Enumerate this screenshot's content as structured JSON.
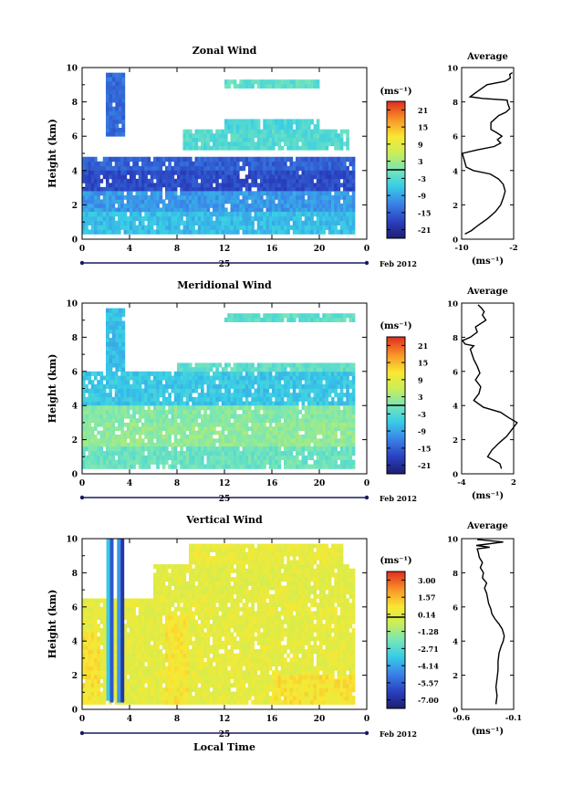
{
  "chart_data": [
    {
      "type": "heatmap",
      "title": "Zonal Wind",
      "ylabel": "Height (km)",
      "ylim": [
        0,
        10
      ],
      "y_ticks": [
        "0",
        "2",
        "4",
        "6",
        "8",
        "10"
      ],
      "xlim": [
        0,
        24
      ],
      "x_ticks": [
        "0",
        "4",
        "8",
        "12",
        "16",
        "20",
        "0"
      ],
      "date_label": "25",
      "month_label": "Feb 2012",
      "colorbar": {
        "unit": "(ms⁻¹)",
        "ticks": [
          "21",
          "15",
          "9",
          "3",
          "-3",
          "-9",
          "-15",
          "-21"
        ],
        "range": [
          -24,
          24
        ]
      },
      "regions": [
        {
          "x": [
            2.0,
            3.6
          ],
          "y": [
            6.0,
            9.7
          ],
          "value": -14
        },
        {
          "x": [
            0.0,
            23.0
          ],
          "y": [
            4.0,
            4.8
          ],
          "value": -15
        },
        {
          "x": [
            0.0,
            23.0
          ],
          "y": [
            2.8,
            4.0
          ],
          "value": -17
        },
        {
          "x": [
            0.0,
            23.0
          ],
          "y": [
            1.6,
            2.8
          ],
          "value": -10
        },
        {
          "x": [
            0.0,
            23.0
          ],
          "y": [
            0.3,
            1.6
          ],
          "value": -7
        },
        {
          "x": [
            8.5,
            22.5
          ],
          "y": [
            5.2,
            6.4
          ],
          "value": -3
        },
        {
          "x": [
            12.0,
            20.0
          ],
          "y": [
            6.4,
            7.0
          ],
          "value": -4
        },
        {
          "x": [
            12.0,
            20.0
          ],
          "y": [
            8.8,
            9.3
          ],
          "value": -2
        }
      ],
      "inset": {
        "title": "Average",
        "xlabel": "(ms⁻¹)",
        "x_ticks": [
          "-10",
          "-2"
        ],
        "xlim": [
          -10,
          -2
        ],
        "y_ticks": [
          "0",
          "2",
          "4",
          "6",
          "8",
          "10"
        ],
        "profile": {
          "x": [
            -9.5,
            -8.5,
            -7.5,
            -6,
            -4.8,
            -4,
            -3.6,
            -3.3,
            -3.6,
            -4.3,
            -5.6,
            -8.2,
            -9.3,
            -9.6,
            -9.9,
            -7.6,
            -5,
            -4,
            -4.5,
            -3.8,
            -4.6,
            -5.5,
            -5.5,
            -4.3,
            -3.2,
            -2.6,
            -2.9,
            -3,
            -6.8,
            -8.7,
            -7.6,
            -6.1,
            -3.3,
            -2.5,
            -2.6,
            -2.2
          ],
          "y": [
            0.3,
            0.5,
            0.8,
            1.2,
            1.6,
            2.0,
            2.4,
            2.8,
            3.2,
            3.5,
            3.8,
            4.0,
            4.2,
            4.6,
            5.0,
            5.2,
            5.4,
            5.6,
            5.8,
            6.0,
            6.2,
            6.4,
            6.8,
            7.2,
            7.4,
            7.6,
            7.9,
            8.1,
            8.2,
            8.3,
            8.6,
            9.0,
            9.2,
            9.4,
            9.6,
            9.7
          ]
        }
      }
    },
    {
      "type": "heatmap",
      "title": "Meridional Wind",
      "ylabel": "Height (km)",
      "ylim": [
        0,
        10
      ],
      "y_ticks": [
        "0",
        "2",
        "4",
        "6",
        "8",
        "10"
      ],
      "xlim": [
        0,
        24
      ],
      "x_ticks": [
        "0",
        "4",
        "8",
        "12",
        "16",
        "20",
        "0"
      ],
      "date_label": "25",
      "month_label": "Feb 2012",
      "colorbar": {
        "unit": "(ms⁻¹)",
        "ticks": [
          "21",
          "15",
          "9",
          "3",
          "-3",
          "-9",
          "-15",
          "-21"
        ],
        "range": [
          -24,
          24
        ]
      },
      "regions": [
        {
          "x": [
            0.0,
            23.0
          ],
          "y": [
            4.0,
            6.0
          ],
          "value": -6
        },
        {
          "x": [
            2.0,
            3.6
          ],
          "y": [
            6.0,
            9.7
          ],
          "value": -7
        },
        {
          "x": [
            0.0,
            23.0
          ],
          "y": [
            3.0,
            4.0
          ],
          "value": 1
        },
        {
          "x": [
            0.0,
            23.0
          ],
          "y": [
            1.6,
            3.0
          ],
          "value": 2
        },
        {
          "x": [
            0.0,
            23.0
          ],
          "y": [
            0.3,
            1.6
          ],
          "value": -1
        },
        {
          "x": [
            8.0,
            23.0
          ],
          "y": [
            6.0,
            6.5
          ],
          "value": -2
        },
        {
          "x": [
            12.0,
            23.0
          ],
          "y": [
            8.9,
            9.4
          ],
          "value": -2
        }
      ],
      "inset": {
        "title": "Average",
        "xlabel": "(ms⁻¹)",
        "x_ticks": [
          "-4",
          "2"
        ],
        "xlim": [
          -4,
          2
        ],
        "y_ticks": [
          "0",
          "2",
          "4",
          "6",
          "8",
          "10"
        ],
        "profile": {
          "x": [
            0.6,
            0.4,
            -1.0,
            -0.5,
            0.3,
            1.2,
            1.8,
            2.4,
            1.4,
            0.5,
            -1.5,
            -2.6,
            -2.0,
            -1.8,
            -2.4,
            -1.9,
            -2.2,
            -2.6,
            -2.8,
            -3.0,
            -2.6,
            -3.6,
            -3.9,
            -3.0,
            -2.2,
            -2.4,
            -1.2,
            -1.6,
            -1.4,
            -1.7,
            -2.1
          ],
          "y": [
            0.3,
            0.6,
            1.0,
            1.4,
            1.8,
            2.2,
            2.6,
            3.0,
            3.3,
            3.6,
            3.9,
            4.3,
            4.7,
            5.1,
            5.5,
            5.9,
            6.3,
            6.7,
            7.0,
            7.3,
            7.5,
            7.6,
            7.8,
            8.0,
            8.3,
            8.6,
            9.0,
            9.3,
            9.5,
            9.7,
            9.9
          ]
        }
      }
    },
    {
      "type": "heatmap",
      "title": "Vertical Wind",
      "ylabel": "Height (km)",
      "xlabel": "Local Time",
      "ylim": [
        0,
        10
      ],
      "y_ticks": [
        "0",
        "2",
        "4",
        "6",
        "8",
        "10"
      ],
      "xlim": [
        0,
        24
      ],
      "x_ticks": [
        "0",
        "4",
        "8",
        "12",
        "16",
        "20",
        "0"
      ],
      "date_label": "25",
      "month_label": "Feb 2012",
      "colorbar": {
        "unit": "(ms⁻¹)",
        "ticks": [
          "3.00",
          "1.57",
          "0.14",
          "-1.28",
          "-2.71",
          "-4.14",
          "-5.57",
          "-7.00"
        ],
        "range": [
          -8,
          4
        ]
      },
      "regions": [
        {
          "x": [
            0.0,
            23.0
          ],
          "y": [
            0.3,
            6.5
          ],
          "value": 0.3
        },
        {
          "x": [
            6.0,
            23.0
          ],
          "y": [
            6.5,
            8.5
          ],
          "value": 0.2
        },
        {
          "x": [
            9.0,
            22.0
          ],
          "y": [
            8.5,
            9.7
          ],
          "value": 0.4
        },
        {
          "x": [
            0.0,
            1.5
          ],
          "y": [
            0.3,
            4.5
          ],
          "value": 0.9
        },
        {
          "x": [
            7.0,
            9.0
          ],
          "y": [
            0.3,
            5.5
          ],
          "value": 0.8
        },
        {
          "x": [
            16.0,
            23.0
          ],
          "y": [
            0.3,
            2.0
          ],
          "value": 0.9
        }
      ],
      "streaks": [
        {
          "x": 2.2,
          "y": [
            0.5,
            10.0
          ],
          "value": -3.5
        },
        {
          "x": 2.5,
          "y": [
            0.4,
            10.0
          ],
          "value": -6.0
        },
        {
          "x": 3.1,
          "y": [
            0.4,
            10.0
          ],
          "value": -4.5
        },
        {
          "x": 3.4,
          "y": [
            0.4,
            10.0
          ],
          "value": -7.0
        }
      ],
      "inset": {
        "title": "Average",
        "xlabel": "(ms⁻¹)",
        "x_ticks": [
          "-0.6",
          "-0.1"
        ],
        "xlim": [
          -0.6,
          -0.1
        ],
        "y_ticks": [
          "0",
          "2",
          "4",
          "6",
          "8",
          "10"
        ],
        "profile": {
          "x": [
            -0.27,
            -0.26,
            -0.27,
            -0.26,
            -0.25,
            -0.25,
            -0.24,
            -0.22,
            -0.2,
            -0.19,
            -0.21,
            -0.24,
            -0.28,
            -0.31,
            -0.32,
            -0.34,
            -0.35,
            -0.36,
            -0.38,
            -0.36,
            -0.4,
            -0.39,
            -0.42,
            -0.4,
            -0.43,
            -0.44,
            -0.45,
            -0.33,
            -0.46,
            -0.2,
            -0.45
          ],
          "y": [
            0.3,
            0.8,
            1.3,
            1.8,
            2.3,
            2.8,
            3.3,
            3.7,
            4.0,
            4.3,
            4.7,
            5.0,
            5.3,
            5.6,
            5.9,
            6.2,
            6.5,
            6.8,
            7.1,
            7.4,
            7.7,
            8.0,
            8.3,
            8.6,
            8.9,
            9.2,
            9.4,
            9.5,
            9.6,
            9.8,
            9.95
          ]
        }
      }
    }
  ]
}
